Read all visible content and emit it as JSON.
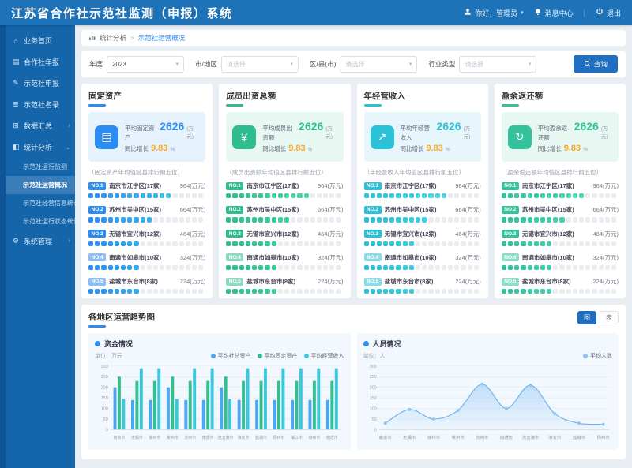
{
  "header": {
    "title": "江苏省合作社示范社监测（申报）系统",
    "user_label": "你好，管理员",
    "message_label": "消息中心",
    "logout_label": "退出"
  },
  "sidebar": {
    "items": [
      {
        "label": "业务首页",
        "icon": "home"
      },
      {
        "label": "合作社年报",
        "icon": "doc"
      },
      {
        "label": "示范社申报",
        "icon": "edit"
      },
      {
        "label": "示范社名录",
        "icon": "list"
      },
      {
        "label": "数据汇总",
        "icon": "data",
        "expandable": true
      },
      {
        "label": "统计分析",
        "icon": "chart",
        "expandable": true,
        "expanded": true,
        "children": [
          {
            "label": "示范社运行监测"
          },
          {
            "label": "示范社运营概况",
            "active": true
          },
          {
            "label": "示范社经营信息统计"
          },
          {
            "label": "示范社运行状态统计"
          }
        ]
      },
      {
        "label": "系统管理",
        "icon": "gear",
        "expandable": true
      }
    ]
  },
  "breadcrumb": {
    "root": "统计分析",
    "sep": ">",
    "current": "示范社运营概况"
  },
  "filters": {
    "fields": [
      {
        "label": "年度",
        "value": "2023",
        "is_placeholder": false
      },
      {
        "label": "市/地区",
        "value": "请选择",
        "is_placeholder": true
      },
      {
        "label": "区/县(市)",
        "value": "请选择",
        "is_placeholder": true
      },
      {
        "label": "行业类型",
        "value": "请选择",
        "is_placeholder": true
      }
    ],
    "search_label": "查询"
  },
  "stat_cards": [
    {
      "title": "固定资产",
      "accent": "#2d8cf0",
      "panel_bg": "#e7f3fc",
      "icon_name": "building-icon",
      "icon_glyph": "▤",
      "stat_label": "平均固定资产",
      "stat_value": "2626",
      "stat_unit": "(万元)",
      "growth_label": "同比增长",
      "growth_value": "9.83",
      "growth_unit": "%",
      "list_title": "（固定资产年均值区县排行前五位）",
      "bar_from": "#2d8cf0",
      "bar_to": "#45d4e8",
      "rows": [
        {
          "rank": "NO.1",
          "name": "南京市江宁区(17家)",
          "value": "964(万元)",
          "fill": 0.72
        },
        {
          "rank": "NO.2",
          "name": "苏州市吴中区(15家)",
          "value": "664(万元)",
          "fill": 0.56
        },
        {
          "rank": "NO.3",
          "name": "无锡市宜兴市(12家)",
          "value": "464(万元)",
          "fill": 0.46
        },
        {
          "rank": "NO.4",
          "name": "南通市如皋市(10家)",
          "value": "324(万元)",
          "fill": 0.44
        },
        {
          "rank": "NO.5",
          "name": "盐城市东台市(8家)",
          "value": "224(万元)",
          "fill": 0.42
        }
      ]
    },
    {
      "title": "成员出资总额",
      "accent": "#2fbd8f",
      "panel_bg": "#e7f8f2",
      "icon_name": "coins-icon",
      "icon_glyph": "¥",
      "stat_label": "平均成员出资额",
      "stat_value": "2626",
      "stat_unit": "(万元)",
      "growth_label": "同比增长",
      "growth_value": "9.83",
      "growth_unit": "%",
      "list_title": "（成员出资额年均值区县排行前五位）",
      "bar_from": "#2fbd8f",
      "bar_to": "#55dfae",
      "rows": [
        {
          "rank": "NO.1",
          "name": "南京市江宁区(17家)",
          "value": "964(万元)",
          "fill": 0.72
        },
        {
          "rank": "NO.2",
          "name": "苏州市吴中区(15家)",
          "value": "664(万元)",
          "fill": 0.56
        },
        {
          "rank": "NO.3",
          "name": "无锡市宜兴市(12家)",
          "value": "464(万元)",
          "fill": 0.46
        },
        {
          "rank": "NO.4",
          "name": "南通市如皋市(10家)",
          "value": "324(万元)",
          "fill": 0.44
        },
        {
          "rank": "NO.5",
          "name": "盐城市东台市(8家)",
          "value": "224(万元)",
          "fill": 0.42
        }
      ]
    },
    {
      "title": "年经营收入",
      "accent": "#2bc1d7",
      "panel_bg": "#e6f6fa",
      "icon_name": "income-icon",
      "icon_glyph": "↗",
      "stat_label": "平均年经营收入",
      "stat_value": "2626",
      "stat_unit": "(万元)",
      "growth_label": "同比增长",
      "growth_value": "9.83",
      "growth_unit": "%",
      "list_title": "（年经营收入年均值区县排行前五位）",
      "bar_from": "#2bc1d7",
      "bar_to": "#5bdcea",
      "rows": [
        {
          "rank": "NO.1",
          "name": "南京市江宁区(17家)",
          "value": "964(万元)",
          "fill": 0.72
        },
        {
          "rank": "NO.2",
          "name": "苏州市吴中区(15家)",
          "value": "664(万元)",
          "fill": 0.56
        },
        {
          "rank": "NO.3",
          "name": "无锡市宜兴市(12家)",
          "value": "464(万元)",
          "fill": 0.46
        },
        {
          "rank": "NO.4",
          "name": "南通市如皋市(10家)",
          "value": "324(万元)",
          "fill": 0.44
        },
        {
          "rank": "NO.5",
          "name": "盐城市东台市(8家)",
          "value": "224(万元)",
          "fill": 0.42
        }
      ]
    },
    {
      "title": "盈余返还额",
      "accent": "#33c29b",
      "panel_bg": "#e7f8f2",
      "icon_name": "return-icon",
      "icon_glyph": "↻",
      "stat_label": "平均盈余返还额",
      "stat_value": "2626",
      "stat_unit": "(万元)",
      "growth_label": "同比增长",
      "growth_value": "9.83",
      "growth_unit": "%",
      "list_title": "（盈余返还额年均值区县排行前五位）",
      "bar_from": "#33c29b",
      "bar_to": "#5fdfbc",
      "rows": [
        {
          "rank": "NO.1",
          "name": "南京市江宁区(17家)",
          "value": "964(万元)",
          "fill": 0.72
        },
        {
          "rank": "NO.2",
          "name": "苏州市吴中区(15家)",
          "value": "664(万元)",
          "fill": 0.56
        },
        {
          "rank": "NO.3",
          "name": "无锡市宜兴市(12家)",
          "value": "464(万元)",
          "fill": 0.46
        },
        {
          "rank": "NO.4",
          "name": "南通市如皋市(10家)",
          "value": "324(万元)",
          "fill": 0.44
        },
        {
          "rank": "NO.5",
          "name": "盐城市东台市(8家)",
          "value": "224(万元)",
          "fill": 0.42
        }
      ]
    }
  ],
  "trend_section": {
    "title": "各地区运营趋势图",
    "toggle": [
      {
        "label": "图",
        "active": true
      },
      {
        "label": "表",
        "active": false
      }
    ],
    "panels": [
      {
        "title": "资金情况",
        "unit": "单位：万元"
      },
      {
        "title": "人员情况",
        "unit": "单位：人"
      }
    ]
  },
  "chart_data": [
    {
      "type": "bar",
      "title": "资金情况",
      "categories": [
        "南京市",
        "无锡市",
        "徐州市",
        "常州市",
        "苏州市",
        "南通市",
        "连云港市",
        "淮安市",
        "盐城市",
        "扬州市",
        "镇江市",
        "泰州市",
        "宿迁市"
      ],
      "series": [
        {
          "name": "平均社总资产",
          "color": "#4da6f5",
          "values": [
            200,
            140,
            140,
            200,
            140,
            140,
            200,
            140,
            140,
            140,
            140,
            140,
            140
          ]
        },
        {
          "name": "平均固定资产",
          "color": "#34c08e",
          "values": [
            250,
            230,
            230,
            250,
            230,
            230,
            250,
            230,
            230,
            230,
            230,
            230,
            230
          ]
        },
        {
          "name": "平均经营收入",
          "color": "#39c8de",
          "values": [
            145,
            290,
            290,
            145,
            290,
            290,
            145,
            290,
            290,
            290,
            290,
            290,
            290
          ]
        }
      ],
      "ylabel": "万元",
      "ylim": [
        0,
        300
      ],
      "ytick_step": 50,
      "grid": true,
      "legend_position": "top-right"
    },
    {
      "type": "area",
      "title": "人员情况",
      "categories": [
        "南京市",
        "无锡市",
        "徐州市",
        "常州市",
        "苏州市",
        "南通市",
        "连云港市",
        "淮安市",
        "盐城市",
        "扬州市"
      ],
      "series": [
        {
          "name": "平均人数",
          "color": "#8fc3f2",
          "values": [
            30,
            95,
            50,
            90,
            215,
            100,
            210,
            75,
            30,
            25
          ]
        }
      ],
      "ylabel": "人",
      "ylim": [
        0,
        300
      ],
      "ytick_step": 50,
      "grid": true,
      "legend_position": "top-right"
    }
  ]
}
